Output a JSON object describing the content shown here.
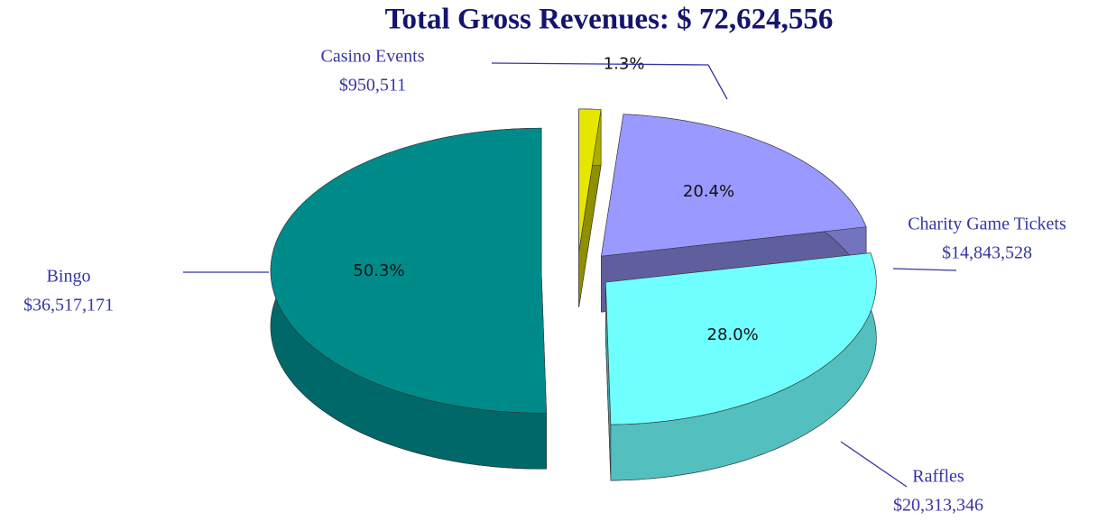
{
  "chart_data": {
    "type": "pie",
    "title": "Total Gross Revenues:  $ 72,624,556",
    "categories": [
      "Casino Events",
      "Charity Game Tickets",
      "Raffles",
      "Bingo"
    ],
    "amount_labels": [
      "$950,511",
      "$14,843,528",
      "$20,313,346",
      "$36,517,171"
    ],
    "values": [
      1.3,
      20.4,
      28.0,
      50.3
    ],
    "value_labels": [
      "1.3%",
      "20.4%",
      "28.0%",
      "50.3%"
    ],
    "colors": [
      "#e6e600",
      "#9999ff",
      "#70ffff",
      "#008b8b"
    ]
  }
}
